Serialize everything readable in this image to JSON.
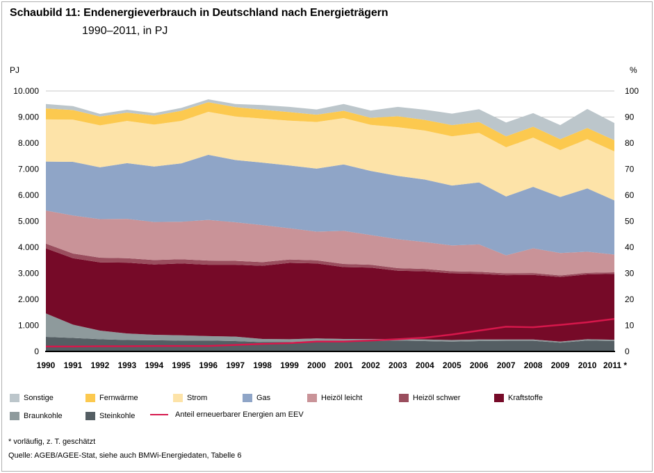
{
  "header": {
    "title": "Schaubild 11: Endenergieverbrauch in Deutschland nach Energieträgern",
    "subtitle": "1990–2011, in PJ"
  },
  "notes": {
    "footnote": "* vorläufig, z. T. geschätzt",
    "source": "Quelle: AGEB/AGEE-Stat, siehe auch BMWi-Energiedaten, Tabelle 6"
  },
  "colors": {
    "Steinkohle": "#545e63",
    "Braunkohle": "#8e9a9c",
    "Kraftstoffe": "#760a28",
    "Heizöl schwer": "#9a4e5e",
    "Heizöl leicht": "#c99398",
    "Gas": "#8fa5c7",
    "Strom": "#fde3a8",
    "Fernwärme": "#fcc94f",
    "Sonstige": "#bcc6cb",
    "line": "#d6174b"
  },
  "chart_data": {
    "type": "area",
    "stacked": true,
    "ylabel_left": "PJ",
    "ylabel_right": "%",
    "ylim_left": [
      0,
      10000
    ],
    "ylim_right": [
      0,
      100
    ],
    "yticks_left": [
      "0",
      "1.000",
      "2.000",
      "3.000",
      "4.000",
      "5.000",
      "6.000",
      "7.000",
      "8.000",
      "9.000",
      "10.000"
    ],
    "yticks_right": [
      "0",
      "10",
      "20",
      "30",
      "40",
      "50",
      "60",
      "70",
      "80",
      "90",
      "100"
    ],
    "categories": [
      "1990",
      "1991",
      "1992",
      "1993",
      "1994",
      "1995",
      "1996",
      "1997",
      "1998",
      "1999",
      "2000",
      "2001",
      "2002",
      "2003",
      "2004",
      "2005",
      "2006",
      "2007",
      "2008",
      "2009",
      "2010",
      "2011 *"
    ],
    "grid": true,
    "series": [
      {
        "name": "Steinkohle",
        "values": [
          560,
          520,
          470,
          440,
          430,
          420,
          420,
          400,
          360,
          360,
          400,
          400,
          400,
          420,
          400,
          380,
          400,
          410,
          410,
          340,
          420,
          400
        ]
      },
      {
        "name": "Braunkohle",
        "values": [
          900,
          510,
          330,
          250,
          210,
          200,
          170,
          170,
          120,
          110,
          100,
          80,
          80,
          60,
          60,
          60,
          60,
          50,
          50,
          40,
          50,
          50
        ]
      },
      {
        "name": "Kraftstoffe",
        "values": [
          2500,
          2550,
          2620,
          2720,
          2700,
          2760,
          2740,
          2760,
          2810,
          2930,
          2880,
          2760,
          2740,
          2620,
          2620,
          2560,
          2520,
          2470,
          2480,
          2480,
          2490,
          2530
        ]
      },
      {
        "name": "Heizöl schwer",
        "values": [
          180,
          180,
          180,
          170,
          170,
          160,
          160,
          150,
          140,
          130,
          120,
          120,
          110,
          100,
          90,
          80,
          80,
          70,
          70,
          60,
          60,
          60
        ]
      },
      {
        "name": "Heizöl leicht",
        "values": [
          1270,
          1460,
          1480,
          1510,
          1460,
          1440,
          1560,
          1480,
          1420,
          1200,
          1100,
          1270,
          1140,
          1110,
          1030,
          990,
          1050,
          690,
          950,
          860,
          810,
          680
        ]
      },
      {
        "name": "Gas",
        "values": [
          1880,
          2060,
          1990,
          2140,
          2130,
          2240,
          2500,
          2390,
          2400,
          2410,
          2420,
          2550,
          2460,
          2430,
          2400,
          2300,
          2380,
          2260,
          2360,
          2150,
          2430,
          2080
        ]
      },
      {
        "name": "Strom",
        "values": [
          1620,
          1620,
          1610,
          1620,
          1610,
          1630,
          1650,
          1670,
          1690,
          1720,
          1790,
          1780,
          1770,
          1870,
          1880,
          1890,
          1900,
          1890,
          1890,
          1800,
          1890,
          1880
        ]
      },
      {
        "name": "Fernwärme",
        "values": [
          420,
          370,
          340,
          320,
          340,
          390,
          370,
          360,
          340,
          330,
          280,
          280,
          270,
          420,
          410,
          430,
          420,
          420,
          420,
          420,
          430,
          430
        ]
      },
      {
        "name": "Sonstige",
        "values": [
          170,
          150,
          100,
          110,
          100,
          110,
          110,
          120,
          180,
          200,
          200,
          260,
          280,
          360,
          390,
          440,
          490,
          530,
          520,
          540,
          730,
          660
        ]
      }
    ],
    "line_series": {
      "name": "Anteil erneuerbarer Energien am EEV",
      "axis": "right",
      "unit": "%",
      "values": [
        1.9,
        1.9,
        2.0,
        2.0,
        2.1,
        2.1,
        2.1,
        2.5,
        2.9,
        3.2,
        3.8,
        3.8,
        4.2,
        4.7,
        5.3,
        6.5,
        8.0,
        9.5,
        9.3,
        10.2,
        11.2,
        12.5
      ]
    }
  }
}
